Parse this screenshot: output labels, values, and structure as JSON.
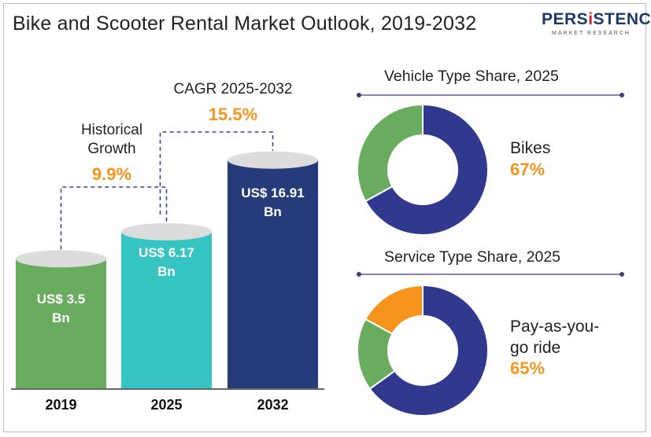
{
  "title": "Bike and Scooter Rental Market Outlook, 2019-2032",
  "logo": {
    "main_pre": "PERS",
    "main_i": "i",
    "main_post": "STENCE",
    "sub": "MARKET RESEARCH"
  },
  "annotations": {
    "historical": {
      "line1": "Historical",
      "line2": "Growth",
      "value": "9.9%"
    },
    "cagr": {
      "title": "CAGR 2025-2032",
      "value": "15.5%"
    }
  },
  "colors": {
    "bar_2019": "#6aac5f",
    "bar_2025": "#35c4c2",
    "bar_2032": "#253b7a",
    "donut_main": "#30398e",
    "donut_green": "#6aac5f",
    "donut_orange": "#f7941d",
    "accent": "#f7941d"
  },
  "chart_data": [
    {
      "type": "bar",
      "categories": [
        "2019",
        "2025",
        "2032"
      ],
      "values": [
        3.5,
        6.17,
        16.91
      ],
      "value_labels": [
        {
          "line1": "US$ 3.5",
          "line2": "Bn"
        },
        {
          "line1": "US$ 6.17",
          "line2": "Bn"
        },
        {
          "line1": "US$ 16.91",
          "line2": "Bn"
        }
      ],
      "title": "",
      "xlabel": "",
      "ylabel": "",
      "grid": false
    },
    {
      "type": "pie",
      "title": "Vehicle Type Share, 2025",
      "slices": [
        {
          "label": "Bikes",
          "value": 67
        },
        {
          "label": "",
          "value": 33
        }
      ],
      "label_line1": "Bikes",
      "label_line2": "",
      "pct": "67%"
    },
    {
      "type": "pie",
      "title": "Service Type Share, 2025",
      "slices": [
        {
          "label": "Pay-as-you-go ride",
          "value": 65
        },
        {
          "label": "",
          "value": 18
        },
        {
          "label": "",
          "value": 17
        }
      ],
      "label_line1": "Pay-as-you-",
      "label_line2": "go ride",
      "pct": "65%"
    }
  ]
}
